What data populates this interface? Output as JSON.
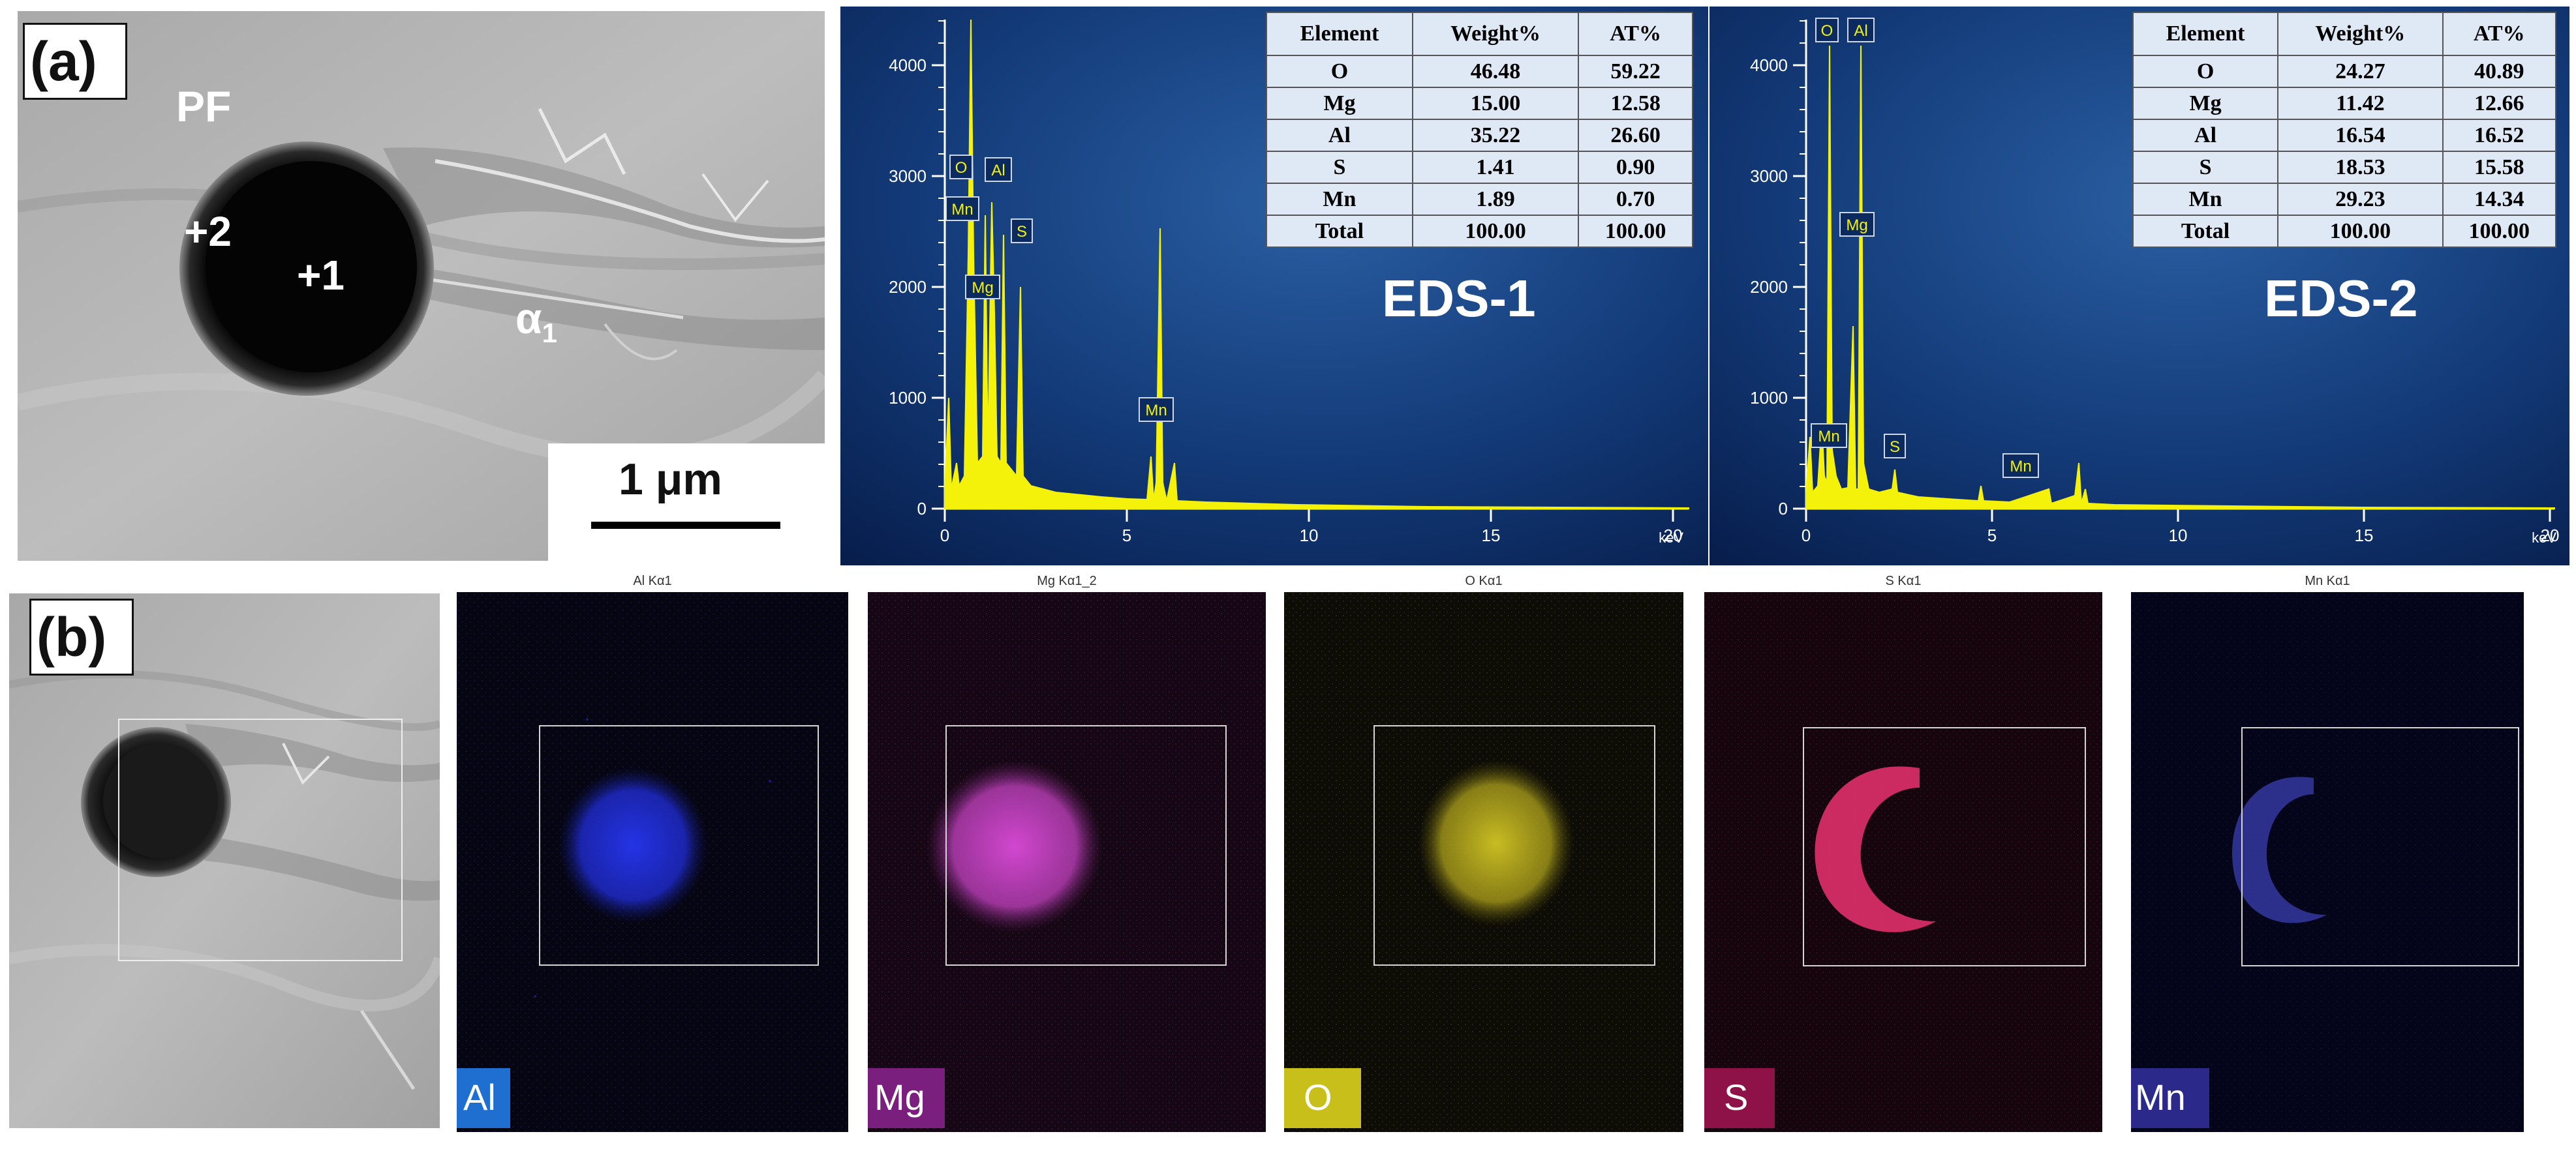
{
  "panel_a": {
    "label": "(a)",
    "sem_labels": {
      "pf": "PF",
      "point2": "+2",
      "point1": "+1",
      "alpha": "α",
      "alpha_sub": "1"
    },
    "scale_bar": "1 μm"
  },
  "panel_b": {
    "label": "(b)"
  },
  "eds_spectra": [
    {
      "title": "EDS-1",
      "x_unit": "keV",
      "x_ticks": [
        "0",
        "5",
        "10",
        "15",
        "20"
      ],
      "y_ticks": [
        "0",
        "1000",
        "2000",
        "3000",
        "4000"
      ],
      "peak_labels": [
        "O",
        "Al",
        "Mn",
        "Mg",
        "S",
        "Mn"
      ],
      "table": {
        "headers": [
          "Element",
          "Weight%",
          "AT%"
        ],
        "rows": [
          [
            "O",
            "46.48",
            "59.22"
          ],
          [
            "Mg",
            "15.00",
            "12.58"
          ],
          [
            "Al",
            "35.22",
            "26.60"
          ],
          [
            "S",
            "1.41",
            "0.90"
          ],
          [
            "Mn",
            "1.89",
            "0.70"
          ],
          [
            "Total",
            "100.00",
            "100.00"
          ]
        ]
      }
    },
    {
      "title": "EDS-2",
      "x_unit": "keV",
      "x_ticks": [
        "0",
        "5",
        "10",
        "15",
        "20"
      ],
      "y_ticks": [
        "0",
        "1000",
        "2000",
        "3000",
        "4000"
      ],
      "peak_labels": [
        "O",
        "Al",
        "Mg",
        "Mn",
        "S",
        "Mn"
      ],
      "table": {
        "headers": [
          "Element",
          "Weight%",
          "AT%"
        ],
        "rows": [
          [
            "O",
            "24.27",
            "40.89"
          ],
          [
            "Mg",
            "11.42",
            "12.66"
          ],
          [
            "Al",
            "16.54",
            "16.52"
          ],
          [
            "S",
            "18.53",
            "15.58"
          ],
          [
            "Mn",
            "29.23",
            "14.34"
          ],
          [
            "Total",
            "100.00",
            "100.00"
          ]
        ]
      }
    }
  ],
  "maps": [
    {
      "title": "Al Kα1",
      "tag": "Al",
      "dot_color": "#2a3ee6",
      "tag_bg": "#1f6fd1"
    },
    {
      "title": "Mg Kα1_2",
      "tag": "Mg",
      "dot_color": "#c23fc6",
      "tag_bg": "#7b1f7e"
    },
    {
      "title": "O Kα1",
      "tag": "O",
      "dot_color": "#b5a81e",
      "tag_bg": "#c9bf1a"
    },
    {
      "title": "S Kα1",
      "tag": "S",
      "dot_color": "#e0306a",
      "tag_bg": "#8e1248"
    },
    {
      "title": "Mn Kα1",
      "tag": "Mn",
      "dot_color": "#3b3fb0",
      "tag_bg": "#2b2a8a"
    }
  ]
}
